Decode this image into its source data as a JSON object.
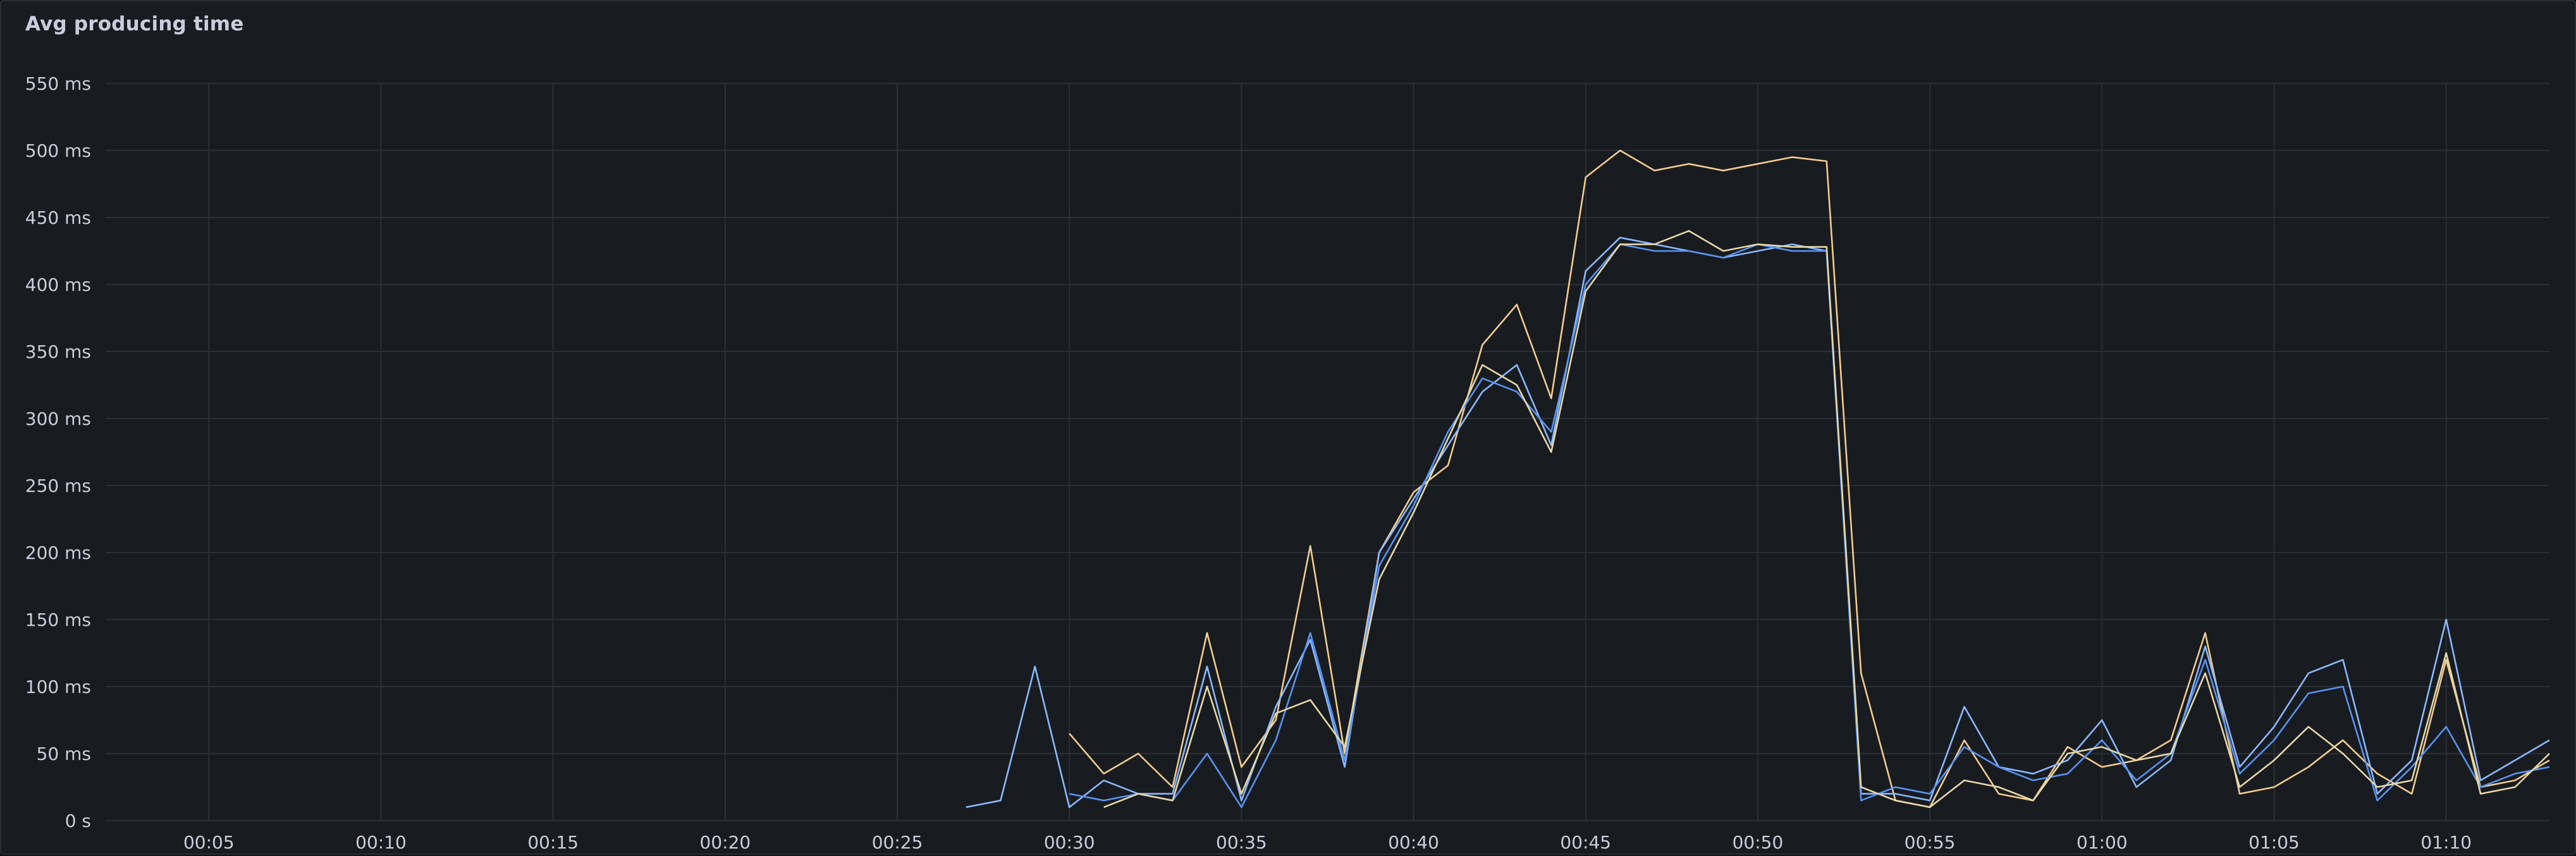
{
  "panel": {
    "title": "Avg producing time"
  },
  "chart_data": {
    "type": "line",
    "title": "Avg producing time",
    "ylim": [
      0,
      550
    ],
    "y_ticks": [
      "0 s",
      "50 ms",
      "100 ms",
      "150 ms",
      "200 ms",
      "250 ms",
      "300 ms",
      "350 ms",
      "400 ms",
      "450 ms",
      "500 ms",
      "550 ms"
    ],
    "x_range": [
      "00:02",
      "01:13"
    ],
    "x_ticks": [
      "00:05",
      "00:10",
      "00:15",
      "00:20",
      "00:25",
      "00:30",
      "00:35",
      "00:40",
      "00:45",
      "00:50",
      "00:55",
      "01:00",
      "01:05",
      "01:10"
    ],
    "grid": true,
    "legend": "none",
    "x": [
      "00:27",
      "00:28",
      "00:29",
      "00:30",
      "00:31",
      "00:32",
      "00:33",
      "00:34",
      "00:35",
      "00:36",
      "00:37",
      "00:38",
      "00:39",
      "00:40",
      "00:41",
      "00:42",
      "00:43",
      "00:44",
      "00:45",
      "00:46",
      "00:47",
      "00:48",
      "00:49",
      "00:50",
      "00:51",
      "00:52",
      "00:53",
      "00:54",
      "00:55",
      "00:56",
      "00:57",
      "00:58",
      "00:59",
      "01:00",
      "01:01",
      "01:02",
      "01:03",
      "01:04",
      "01:05",
      "01:06",
      "01:07",
      "01:08",
      "01:09",
      "01:10",
      "01:11",
      "01:12",
      "01:13"
    ],
    "series": [
      {
        "color": "#f2cc8f",
        "values": [
          null,
          null,
          null,
          65,
          35,
          50,
          25,
          140,
          40,
          75,
          205,
          50,
          200,
          245,
          265,
          355,
          385,
          315,
          480,
          500,
          485,
          490,
          485,
          490,
          495,
          492,
          110,
          15,
          10,
          60,
          20,
          15,
          55,
          40,
          45,
          60,
          140,
          20,
          25,
          40,
          60,
          35,
          20,
          120,
          25,
          30,
          45
        ]
      },
      {
        "color": "#ffe0a0",
        "values": [
          null,
          null,
          null,
          null,
          null,
          null,
          null,
          null,
          null,
          null,
          null,
          null,
          null,
          null,
          null,
          null,
          null,
          null,
          null,
          null,
          null,
          null,
          null,
          null,
          null,
          null,
          null,
          null,
          null,
          null,
          null,
          null,
          null,
          null,
          null,
          null,
          null,
          null,
          null,
          null,
          null,
          null,
          null,
          null,
          null,
          null,
          null
        ]
      },
      {
        "color": "#8ab8ff",
        "values": [
          10,
          15,
          115,
          10,
          30,
          20,
          20,
          115,
          15,
          85,
          135,
          40,
          200,
          240,
          280,
          320,
          340,
          280,
          410,
          435,
          430,
          425,
          420,
          425,
          430,
          425,
          20,
          20,
          15,
          85,
          40,
          35,
          45,
          75,
          25,
          45,
          130,
          40,
          70,
          110,
          120,
          20,
          45,
          150,
          30,
          45,
          60
        ]
      },
      {
        "color": "#5794f2",
        "values": [
          null,
          null,
          null,
          20,
          15,
          20,
          15,
          50,
          10,
          60,
          140,
          45,
          190,
          235,
          290,
          330,
          320,
          290,
          400,
          430,
          425,
          425,
          420,
          430,
          425,
          425,
          15,
          25,
          20,
          55,
          40,
          30,
          35,
          60,
          30,
          50,
          120,
          35,
          60,
          95,
          100,
          15,
          40,
          70,
          25,
          35,
          40
        ]
      },
      {
        "color": "#b8c5f2",
        "values": [
          null,
          null,
          null,
          null,
          null,
          null,
          null,
          null,
          null,
          null,
          null,
          null,
          null,
          null,
          null,
          null,
          null,
          null,
          null,
          null,
          null,
          null,
          null,
          null,
          null,
          null,
          null,
          null,
          null,
          null,
          null,
          null,
          null,
          null,
          null,
          null,
          null,
          null,
          null,
          null,
          null,
          null,
          null,
          null,
          null,
          null,
          null
        ]
      },
      {
        "color": "#e6d8a8",
        "values": [
          null,
          null,
          null,
          null,
          10,
          20,
          15,
          100,
          20,
          80,
          90,
          55,
          180,
          230,
          285,
          340,
          325,
          275,
          395,
          430,
          430,
          440,
          425,
          430,
          428,
          428,
          25,
          15,
          10,
          30,
          25,
          15,
          50,
          55,
          45,
          50,
          110,
          25,
          45,
          70,
          50,
          25,
          30,
          125,
          20,
          25,
          50
        ]
      },
      {
        "color": "#8f9bb3",
        "values": [
          null,
          null,
          null,
          null,
          null,
          null,
          null,
          null,
          null,
          null,
          null,
          null,
          null,
          null,
          null,
          null,
          null,
          null,
          null,
          null,
          null,
          null,
          null,
          null,
          null,
          null,
          null,
          null,
          null,
          null,
          null,
          null,
          null,
          null,
          null,
          null,
          null,
          null,
          null,
          null,
          null,
          null,
          null,
          null,
          null,
          null,
          null
        ]
      }
    ]
  }
}
